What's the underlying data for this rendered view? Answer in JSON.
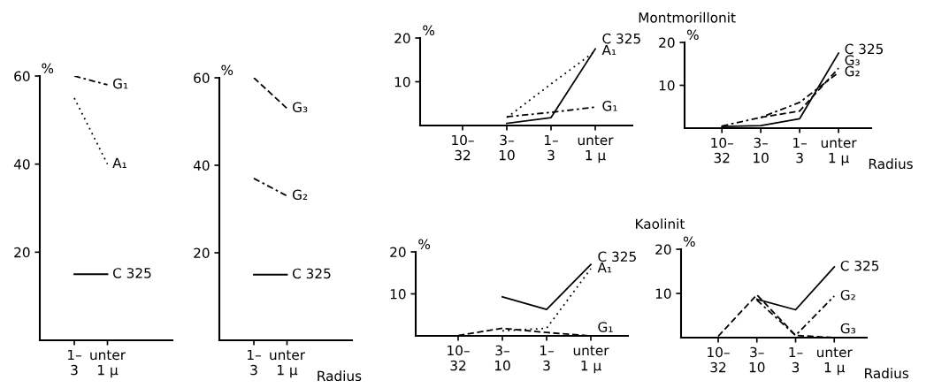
{
  "chart_data": [
    {
      "type": "line",
      "ylabel": "%",
      "categories": [
        "1–\n3",
        "unter\n1 μ"
      ],
      "ylim": [
        0,
        60
      ],
      "yticks": [
        20,
        40,
        60
      ],
      "grid": false,
      "legend": false,
      "series": [
        {
          "name": "G₁",
          "color": "#000000",
          "line_style": "dashdot",
          "values": [
            60,
            58
          ]
        },
        {
          "name": "A₁",
          "color": "#000000",
          "line_style": "dotted",
          "values": [
            55,
            40
          ]
        },
        {
          "name": "C 325",
          "color": "#000000",
          "line_style": "solid",
          "values": [
            15,
            15
          ]
        }
      ]
    },
    {
      "type": "line",
      "ylabel": "%",
      "xlabel": "Radius",
      "categories": [
        "1–\n3",
        "unter\n1 μ"
      ],
      "ylim": [
        0,
        60
      ],
      "yticks": [
        20,
        40,
        60
      ],
      "grid": false,
      "legend": false,
      "series": [
        {
          "name": "G₃",
          "color": "#000000",
          "line_style": "dashed",
          "values": [
            60,
            53
          ]
        },
        {
          "name": "G₂",
          "color": "#000000",
          "line_style": "dashdot",
          "values": [
            37,
            33
          ]
        },
        {
          "name": "C 325",
          "color": "#000000",
          "line_style": "solid",
          "values": [
            15,
            15
          ]
        }
      ]
    },
    {
      "type": "line",
      "ylabel": "%",
      "categories": [
        "10–\n32",
        "3–\n10",
        "1–\n3",
        "unter\n1 μ"
      ],
      "ylim": [
        0,
        20
      ],
      "yticks": [
        10,
        20
      ],
      "grid": false,
      "legend": false,
      "series": [
        {
          "name": "A₁",
          "color": "#000000",
          "line_style": "dotted",
          "values": [
            null,
            1.8,
            9.5,
            17
          ]
        },
        {
          "name": "C 325",
          "color": "#000000",
          "line_style": "solid",
          "values": [
            null,
            0.5,
            1.8,
            17.5
          ]
        },
        {
          "name": "G₁",
          "color": "#000000",
          "line_style": "dashdot",
          "values": [
            null,
            2,
            3,
            4.2
          ]
        }
      ]
    },
    {
      "type": "line",
      "title": "Montmorillonit",
      "ylabel": "%",
      "xlabel": "Radius",
      "categories": [
        "10–\n32",
        "3–\n10",
        "1–\n3",
        "unter\n1 μ"
      ],
      "ylim": [
        0,
        20
      ],
      "yticks": [
        10,
        20
      ],
      "grid": false,
      "legend": false,
      "series": [
        {
          "name": "C 325",
          "color": "#000000",
          "line_style": "solid",
          "values": [
            0.4,
            0.6,
            2.2,
            17.5
          ]
        },
        {
          "name": "G₃",
          "color": "#000000",
          "line_style": "dashed",
          "values": [
            null,
            2.5,
            4,
            14
          ]
        },
        {
          "name": "G₂",
          "color": "#000000",
          "line_style": "dashdot",
          "values": [
            0.5,
            2.5,
            6,
            13
          ]
        }
      ]
    },
    {
      "type": "line",
      "ylabel": "%",
      "categories": [
        "10–\n32",
        "3–\n10",
        "1–\n3",
        "unter\n1 μ"
      ],
      "ylim": [
        0,
        20
      ],
      "yticks": [
        10,
        20
      ],
      "grid": false,
      "legend": false,
      "series": [
        {
          "name": "C 325",
          "color": "#000000",
          "line_style": "solid",
          "values": [
            null,
            9.3,
            6.3,
            17
          ]
        },
        {
          "name": "A₁",
          "color": "#000000",
          "line_style": "dotted",
          "values": [
            null,
            1.2,
            1.8,
            16
          ]
        },
        {
          "name": "G₁",
          "color": "#000000",
          "line_style": "dashed",
          "values": [
            0.1,
            1.8,
            0.8,
            0
          ]
        }
      ]
    },
    {
      "type": "line",
      "title": "Kaolinit",
      "ylabel": "%",
      "xlabel": "Radius",
      "categories": [
        "10–\n32",
        "3–\n10",
        "1–\n3",
        "unter\n1 μ"
      ],
      "ylim": [
        0,
        20
      ],
      "yticks": [
        10,
        20
      ],
      "grid": false,
      "legend": false,
      "series": [
        {
          "name": "C 325",
          "color": "#000000",
          "line_style": "solid",
          "values": [
            null,
            8.7,
            6.3,
            16
          ]
        },
        {
          "name": "G₃",
          "color": "#000000",
          "line_style": "dashed",
          "values": [
            0.3,
            9.7,
            0.5,
            0
          ]
        },
        {
          "name": "G₂",
          "color": "#000000",
          "line_style": "dashdot",
          "values": [
            null,
            8.5,
            0.5,
            9.4
          ]
        }
      ]
    }
  ]
}
